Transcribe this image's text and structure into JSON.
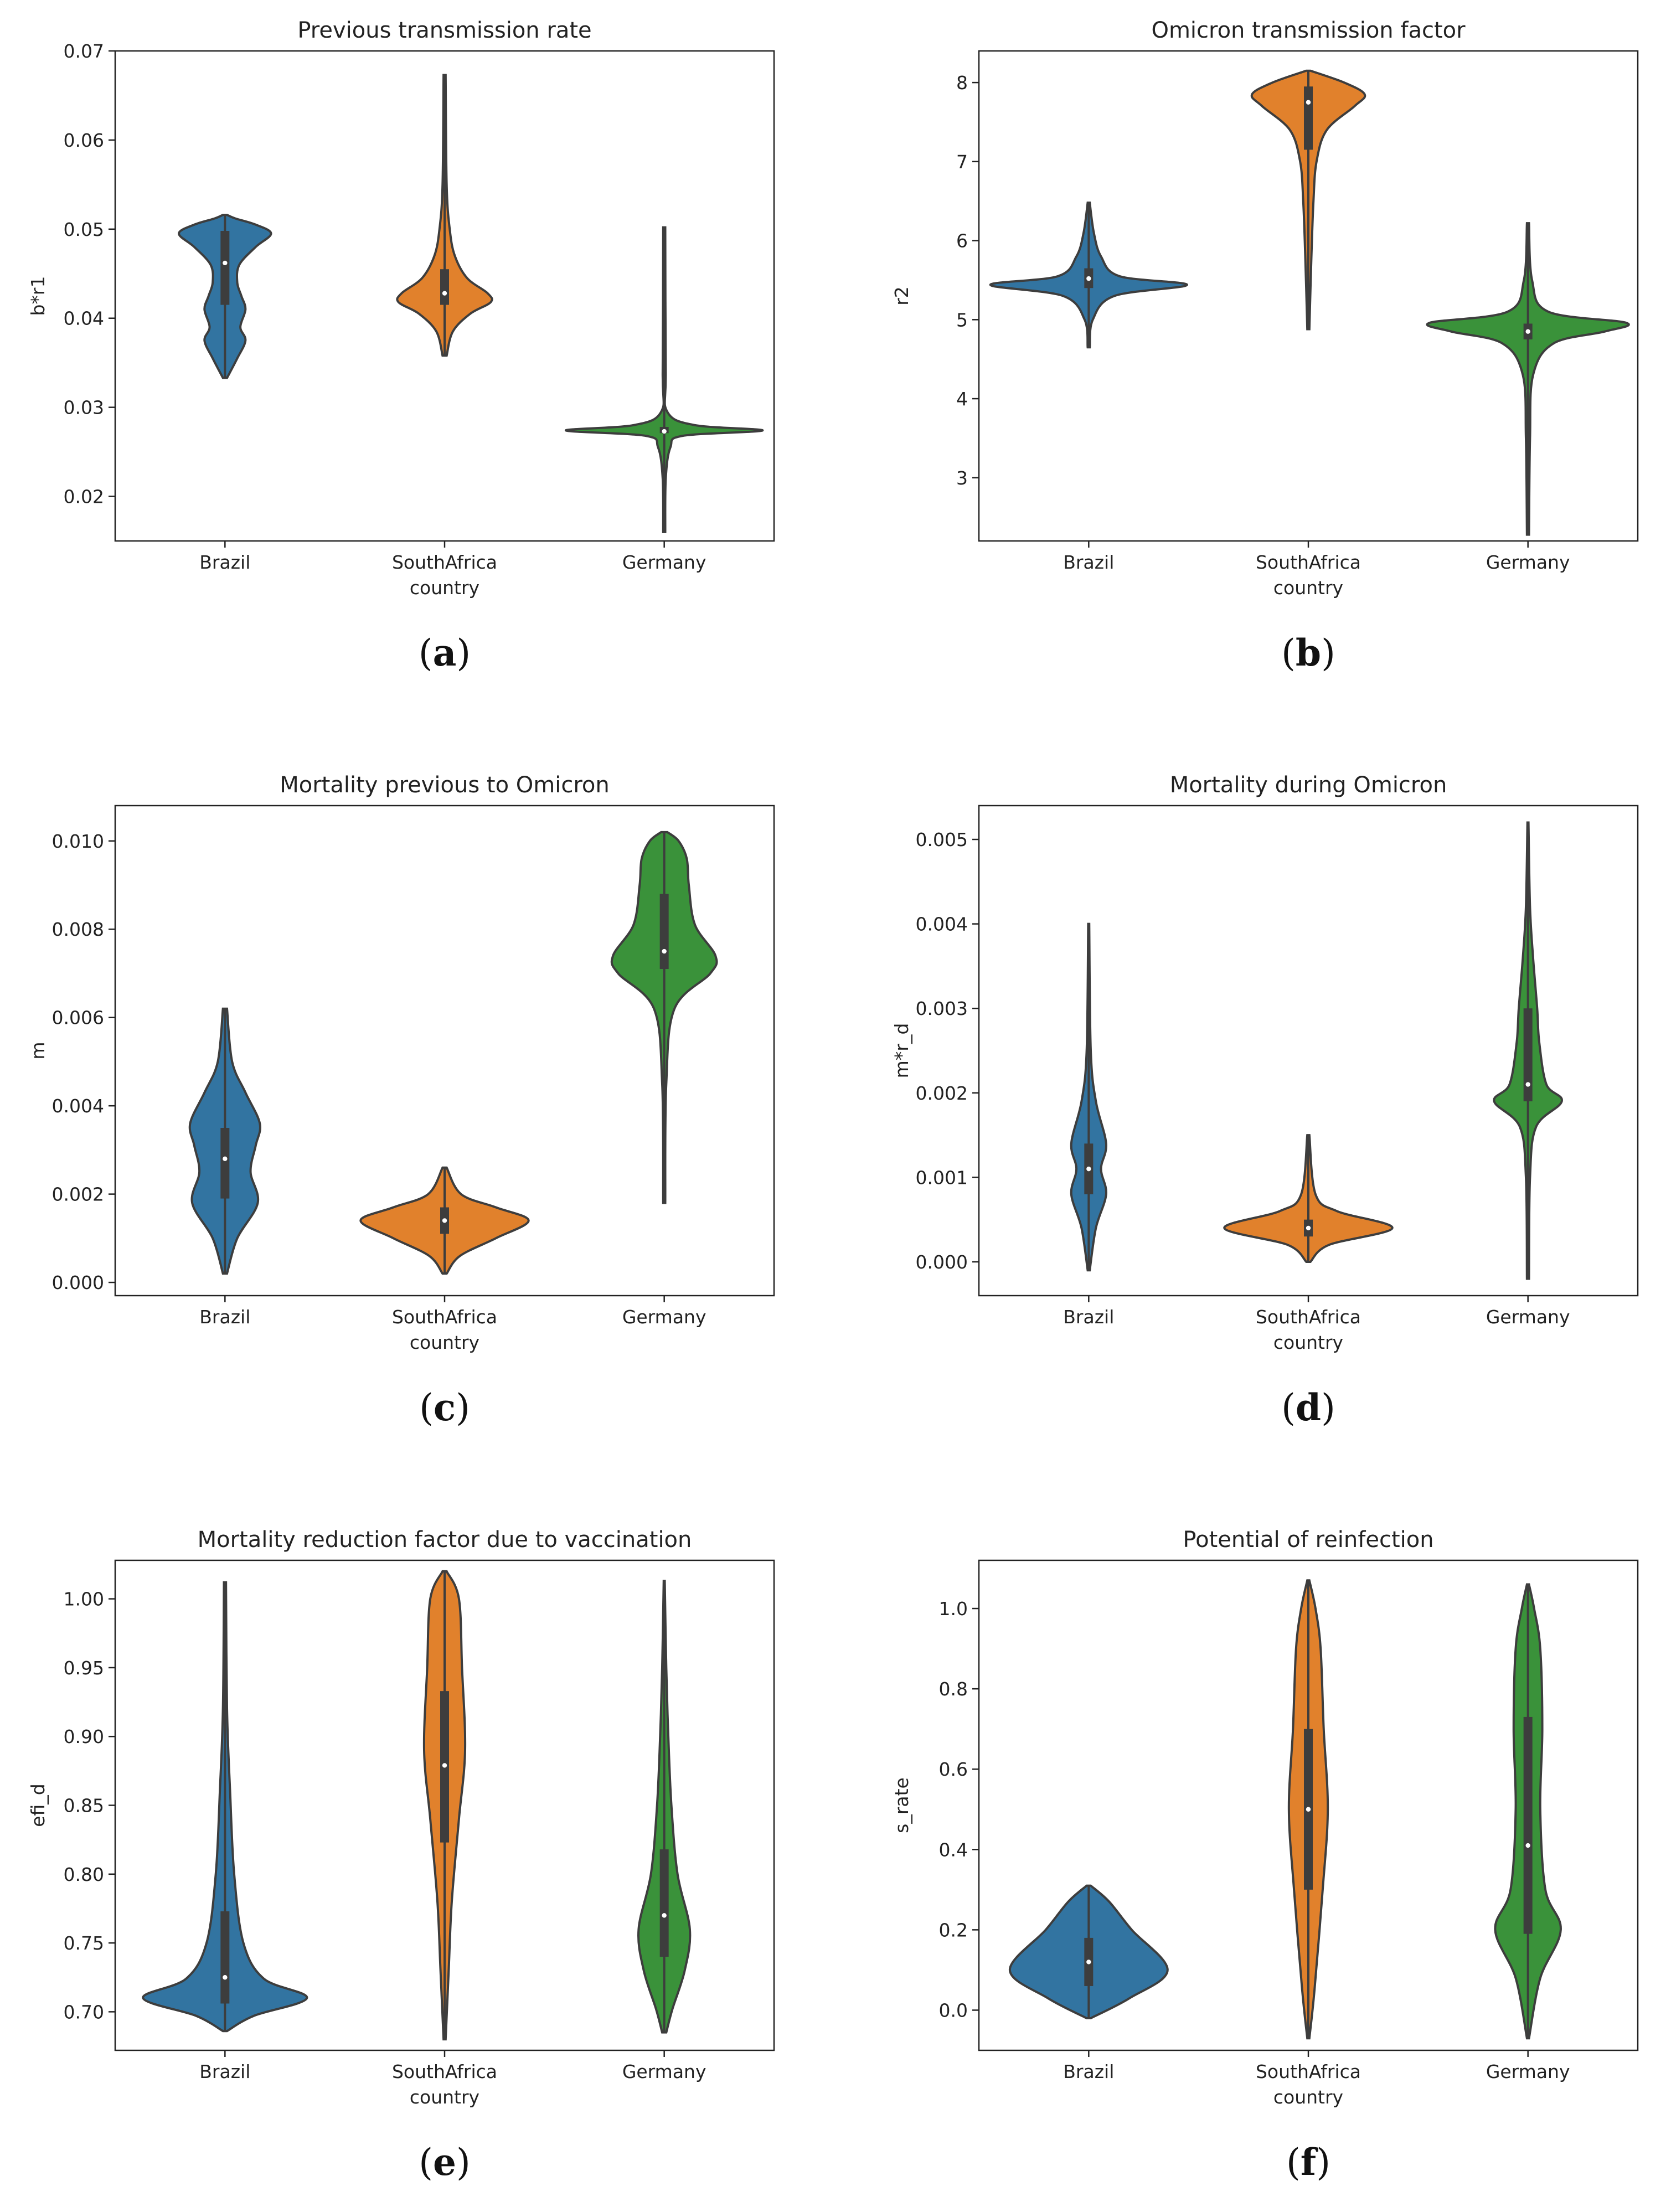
{
  "figure": {
    "panel_caption_format": "({letter})"
  },
  "colors": {
    "Brazil": "#3274a1",
    "SouthAfrica": "#e1812c",
    "Germany": "#3a923a",
    "outline": "#3d3d3d"
  },
  "chart_data": [
    {
      "type": "violin",
      "letter": "a",
      "title": "Previous transmission rate",
      "xlabel": "country",
      "ylabel": "b*r1",
      "categories": [
        "Brazil",
        "SouthAfrica",
        "Germany"
      ],
      "ylim": [
        0.015,
        0.07
      ],
      "yticks": [
        0.02,
        0.03,
        0.04,
        0.05,
        0.06,
        0.07
      ],
      "ytick_labels": [
        "0.02",
        "0.03",
        "0.04",
        "0.05",
        "0.06",
        "0.07"
      ],
      "series": [
        {
          "name": "Brazil",
          "min": 0.0333,
          "max": 0.0516,
          "q1": 0.0415,
          "median": 0.0462,
          "q3": 0.0498,
          "density": [
            [
              0.0333,
              0.02
            ],
            [
              0.0355,
              0.12
            ],
            [
              0.0375,
              0.2
            ],
            [
              0.039,
              0.15
            ],
            [
              0.041,
              0.2
            ],
            [
              0.0425,
              0.16
            ],
            [
              0.044,
              0.12
            ],
            [
              0.046,
              0.14
            ],
            [
              0.048,
              0.3
            ],
            [
              0.0495,
              0.45
            ],
            [
              0.0505,
              0.3
            ],
            [
              0.0512,
              0.1
            ],
            [
              0.0516,
              0.02
            ]
          ]
        },
        {
          "name": "SouthAfrica",
          "min": 0.0358,
          "max": 0.0673,
          "q1": 0.0415,
          "median": 0.0428,
          "q3": 0.0455,
          "density": [
            [
              0.0358,
              0.02
            ],
            [
              0.0385,
              0.08
            ],
            [
              0.0405,
              0.25
            ],
            [
              0.0418,
              0.45
            ],
            [
              0.0428,
              0.42
            ],
            [
              0.0445,
              0.22
            ],
            [
              0.047,
              0.1
            ],
            [
              0.05,
              0.05
            ],
            [
              0.055,
              0.02
            ],
            [
              0.0673,
              0.01
            ]
          ]
        },
        {
          "name": "Germany",
          "min": 0.016,
          "max": 0.0502,
          "q1": 0.0271,
          "median": 0.0273,
          "q3": 0.0278,
          "density": [
            [
              0.016,
              0.01
            ],
            [
              0.022,
              0.015
            ],
            [
              0.0255,
              0.06
            ],
            [
              0.0268,
              0.18
            ],
            [
              0.0274,
              0.96
            ],
            [
              0.028,
              0.3
            ],
            [
              0.0295,
              0.03
            ],
            [
              0.034,
              0.015
            ],
            [
              0.0502,
              0.01
            ]
          ]
        }
      ]
    },
    {
      "type": "violin",
      "letter": "b",
      "title": "Omicron transmission factor",
      "xlabel": "country",
      "ylabel": "r2",
      "categories": [
        "Brazil",
        "SouthAfrica",
        "Germany"
      ],
      "ylim": [
        2.2,
        8.4
      ],
      "yticks": [
        3,
        4,
        5,
        6,
        7,
        8
      ],
      "ytick_labels": [
        "3",
        "4",
        "5",
        "6",
        "7",
        "8"
      ],
      "series": [
        {
          "name": "Brazil",
          "min": 4.65,
          "max": 6.48,
          "q1": 5.4,
          "median": 5.52,
          "q3": 5.65,
          "density": [
            [
              4.65,
              0.01
            ],
            [
              5.0,
              0.04
            ],
            [
              5.3,
              0.25
            ],
            [
              5.44,
              0.96
            ],
            [
              5.55,
              0.3
            ],
            [
              5.8,
              0.12
            ],
            [
              6.1,
              0.05
            ],
            [
              6.48,
              0.01
            ]
          ]
        },
        {
          "name": "SouthAfrica",
          "min": 4.88,
          "max": 8.15,
          "q1": 7.15,
          "median": 7.75,
          "q3": 7.95,
          "density": [
            [
              4.88,
              0.01
            ],
            [
              5.8,
              0.03
            ],
            [
              6.5,
              0.05
            ],
            [
              7.0,
              0.08
            ],
            [
              7.4,
              0.18
            ],
            [
              7.7,
              0.45
            ],
            [
              7.85,
              0.55
            ],
            [
              8.0,
              0.35
            ],
            [
              8.15,
              0.02
            ]
          ]
        },
        {
          "name": "Germany",
          "min": 2.28,
          "max": 6.22,
          "q1": 4.75,
          "median": 4.85,
          "q3": 4.95,
          "density": [
            [
              2.28,
              0.01
            ],
            [
              3.5,
              0.02
            ],
            [
              4.3,
              0.05
            ],
            [
              4.7,
              0.25
            ],
            [
              4.85,
              0.75
            ],
            [
              4.96,
              0.96
            ],
            [
              5.1,
              0.2
            ],
            [
              5.5,
              0.04
            ],
            [
              6.22,
              0.01
            ]
          ]
        }
      ]
    },
    {
      "type": "violin",
      "letter": "c",
      "title": "Mortality previous to Omicron",
      "xlabel": "country",
      "ylabel": "m",
      "categories": [
        "Brazil",
        "SouthAfrica",
        "Germany"
      ],
      "ylim": [
        -0.0003,
        0.0108
      ],
      "yticks": [
        0.0,
        0.002,
        0.004,
        0.006,
        0.008,
        0.01
      ],
      "ytick_labels": [
        "0.000",
        "0.002",
        "0.004",
        "0.006",
        "0.008",
        "0.010"
      ],
      "series": [
        {
          "name": "Brazil",
          "min": 0.0002,
          "max": 0.0062,
          "q1": 0.0019,
          "median": 0.0028,
          "q3": 0.0035,
          "density": [
            [
              0.0002,
              0.02
            ],
            [
              0.001,
              0.12
            ],
            [
              0.0018,
              0.32
            ],
            [
              0.0025,
              0.25
            ],
            [
              0.0031,
              0.3
            ],
            [
              0.0036,
              0.34
            ],
            [
              0.0043,
              0.2
            ],
            [
              0.005,
              0.07
            ],
            [
              0.0062,
              0.02
            ]
          ]
        },
        {
          "name": "SouthAfrica",
          "min": 0.0002,
          "max": 0.0026,
          "q1": 0.0011,
          "median": 0.0014,
          "q3": 0.0017,
          "density": [
            [
              0.0002,
              0.02
            ],
            [
              0.0006,
              0.15
            ],
            [
              0.001,
              0.5
            ],
            [
              0.0014,
              0.82
            ],
            [
              0.0017,
              0.5
            ],
            [
              0.002,
              0.16
            ],
            [
              0.0026,
              0.02
            ]
          ]
        },
        {
          "name": "Germany",
          "min": 0.0018,
          "max": 0.0102,
          "q1": 0.0071,
          "median": 0.0075,
          "q3": 0.0088,
          "density": [
            [
              0.0018,
              0.01
            ],
            [
              0.0045,
              0.02
            ],
            [
              0.0062,
              0.1
            ],
            [
              0.007,
              0.45
            ],
            [
              0.0074,
              0.5
            ],
            [
              0.0081,
              0.3
            ],
            [
              0.009,
              0.24
            ],
            [
              0.0096,
              0.22
            ],
            [
              0.01,
              0.14
            ],
            [
              0.0102,
              0.03
            ]
          ]
        }
      ]
    },
    {
      "type": "violin",
      "letter": "d",
      "title": "Mortality during Omicron",
      "xlabel": "country",
      "ylabel": "m*r_d",
      "categories": [
        "Brazil",
        "SouthAfrica",
        "Germany"
      ],
      "ylim": [
        -0.0004,
        0.0054
      ],
      "yticks": [
        0.0,
        0.001,
        0.002,
        0.003,
        0.004,
        0.005
      ],
      "ytick_labels": [
        "0.000",
        "0.001",
        "0.002",
        "0.003",
        "0.004",
        "0.005"
      ],
      "series": [
        {
          "name": "Brazil",
          "min": -0.0001,
          "max": 0.004,
          "q1": 0.0008,
          "median": 0.0011,
          "q3": 0.0014,
          "density": [
            [
              -0.0001,
              0.01
            ],
            [
              0.0004,
              0.07
            ],
            [
              0.0008,
              0.17
            ],
            [
              0.0011,
              0.12
            ],
            [
              0.0014,
              0.17
            ],
            [
              0.0019,
              0.07
            ],
            [
              0.0025,
              0.02
            ],
            [
              0.004,
              0.005
            ]
          ]
        },
        {
          "name": "SouthAfrica",
          "min": 0.0,
          "max": 0.0015,
          "q1": 0.0003,
          "median": 0.0004,
          "q3": 0.0005,
          "density": [
            [
              0.0,
              0.02
            ],
            [
              0.0002,
              0.2
            ],
            [
              0.0004,
              0.82
            ],
            [
              0.0006,
              0.28
            ],
            [
              0.0008,
              0.07
            ],
            [
              0.0015,
              0.01
            ]
          ]
        },
        {
          "name": "Germany",
          "min": -0.0002,
          "max": 0.0052,
          "q1": 0.0019,
          "median": 0.0021,
          "q3": 0.003,
          "density": [
            [
              -0.0002,
              0.01
            ],
            [
              0.001,
              0.02
            ],
            [
              0.0016,
              0.08
            ],
            [
              0.0019,
              0.33
            ],
            [
              0.0021,
              0.18
            ],
            [
              0.0026,
              0.11
            ],
            [
              0.003,
              0.09
            ],
            [
              0.0036,
              0.05
            ],
            [
              0.0042,
              0.02
            ],
            [
              0.0052,
              0.005
            ]
          ]
        }
      ]
    },
    {
      "type": "violin",
      "letter": "e",
      "title": "Mortality reduction factor due to vaccination",
      "xlabel": "country",
      "ylabel": "efi_d",
      "categories": [
        "Brazil",
        "SouthAfrica",
        "Germany"
      ],
      "ylim": [
        0.672,
        1.028
      ],
      "yticks": [
        0.7,
        0.75,
        0.8,
        0.85,
        0.9,
        0.95,
        1.0
      ],
      "ytick_labels": [
        "0.70",
        "0.75",
        "0.80",
        "0.85",
        "0.90",
        "0.95",
        "1.00"
      ],
      "series": [
        {
          "name": "Brazil",
          "min": 0.686,
          "max": 1.012,
          "q1": 0.706,
          "median": 0.725,
          "q3": 0.773,
          "density": [
            [
              0.686,
              0.02
            ],
            [
              0.697,
              0.28
            ],
            [
              0.71,
              0.8
            ],
            [
              0.724,
              0.38
            ],
            [
              0.75,
              0.18
            ],
            [
              0.8,
              0.09
            ],
            [
              0.86,
              0.05
            ],
            [
              0.92,
              0.02
            ],
            [
              1.012,
              0.01
            ]
          ]
        },
        {
          "name": "SouthAfrica",
          "min": 0.68,
          "max": 1.02,
          "q1": 0.823,
          "median": 0.879,
          "q3": 0.933,
          "density": [
            [
              0.68,
              0.01
            ],
            [
              0.73,
              0.04
            ],
            [
              0.78,
              0.07
            ],
            [
              0.84,
              0.14
            ],
            [
              0.89,
              0.2
            ],
            [
              0.95,
              0.17
            ],
            [
              1.0,
              0.14
            ],
            [
              1.02,
              0.02
            ]
          ]
        },
        {
          "name": "Germany",
          "min": 0.685,
          "max": 1.013,
          "q1": 0.74,
          "median": 0.77,
          "q3": 0.818,
          "density": [
            [
              0.685,
              0.02
            ],
            [
              0.702,
              0.08
            ],
            [
              0.73,
              0.2
            ],
            [
              0.76,
              0.25
            ],
            [
              0.8,
              0.13
            ],
            [
              0.85,
              0.07
            ],
            [
              0.9,
              0.04
            ],
            [
              0.95,
              0.02
            ],
            [
              1.013,
              0.005
            ]
          ]
        }
      ]
    },
    {
      "type": "violin",
      "letter": "f",
      "title": "Potential of reinfection",
      "xlabel": "country",
      "ylabel": "s_rate",
      "categories": [
        "Brazil",
        "SouthAfrica",
        "Germany"
      ],
      "ylim": [
        -0.1,
        1.12
      ],
      "yticks": [
        0.0,
        0.2,
        0.4,
        0.6,
        0.8,
        1.0
      ],
      "ytick_labels": [
        "0.0",
        "0.2",
        "0.4",
        "0.6",
        "0.8",
        "1.0"
      ],
      "series": [
        {
          "name": "Brazil",
          "min": -0.02,
          "max": 0.31,
          "q1": 0.06,
          "median": 0.12,
          "q3": 0.18,
          "density": [
            [
              -0.02,
              0.02
            ],
            [
              0.03,
              0.4
            ],
            [
              0.1,
              0.77
            ],
            [
              0.2,
              0.42
            ],
            [
              0.27,
              0.2
            ],
            [
              0.31,
              0.02
            ]
          ]
        },
        {
          "name": "SouthAfrica",
          "min": -0.07,
          "max": 1.07,
          "q1": 0.3,
          "median": 0.5,
          "q3": 0.7,
          "density": [
            [
              -0.07,
              0.01
            ],
            [
              0.05,
              0.06
            ],
            [
              0.3,
              0.14
            ],
            [
              0.5,
              0.19
            ],
            [
              0.7,
              0.15
            ],
            [
              0.9,
              0.12
            ],
            [
              1.0,
              0.07
            ],
            [
              1.07,
              0.01
            ]
          ]
        },
        {
          "name": "Germany",
          "min": -0.07,
          "max": 1.06,
          "q1": 0.19,
          "median": 0.41,
          "q3": 0.73,
          "density": [
            [
              -0.07,
              0.01
            ],
            [
              0.08,
              0.12
            ],
            [
              0.2,
              0.32
            ],
            [
              0.3,
              0.17
            ],
            [
              0.5,
              0.12
            ],
            [
              0.7,
              0.14
            ],
            [
              0.9,
              0.12
            ],
            [
              1.0,
              0.06
            ],
            [
              1.06,
              0.01
            ]
          ]
        }
      ]
    }
  ]
}
